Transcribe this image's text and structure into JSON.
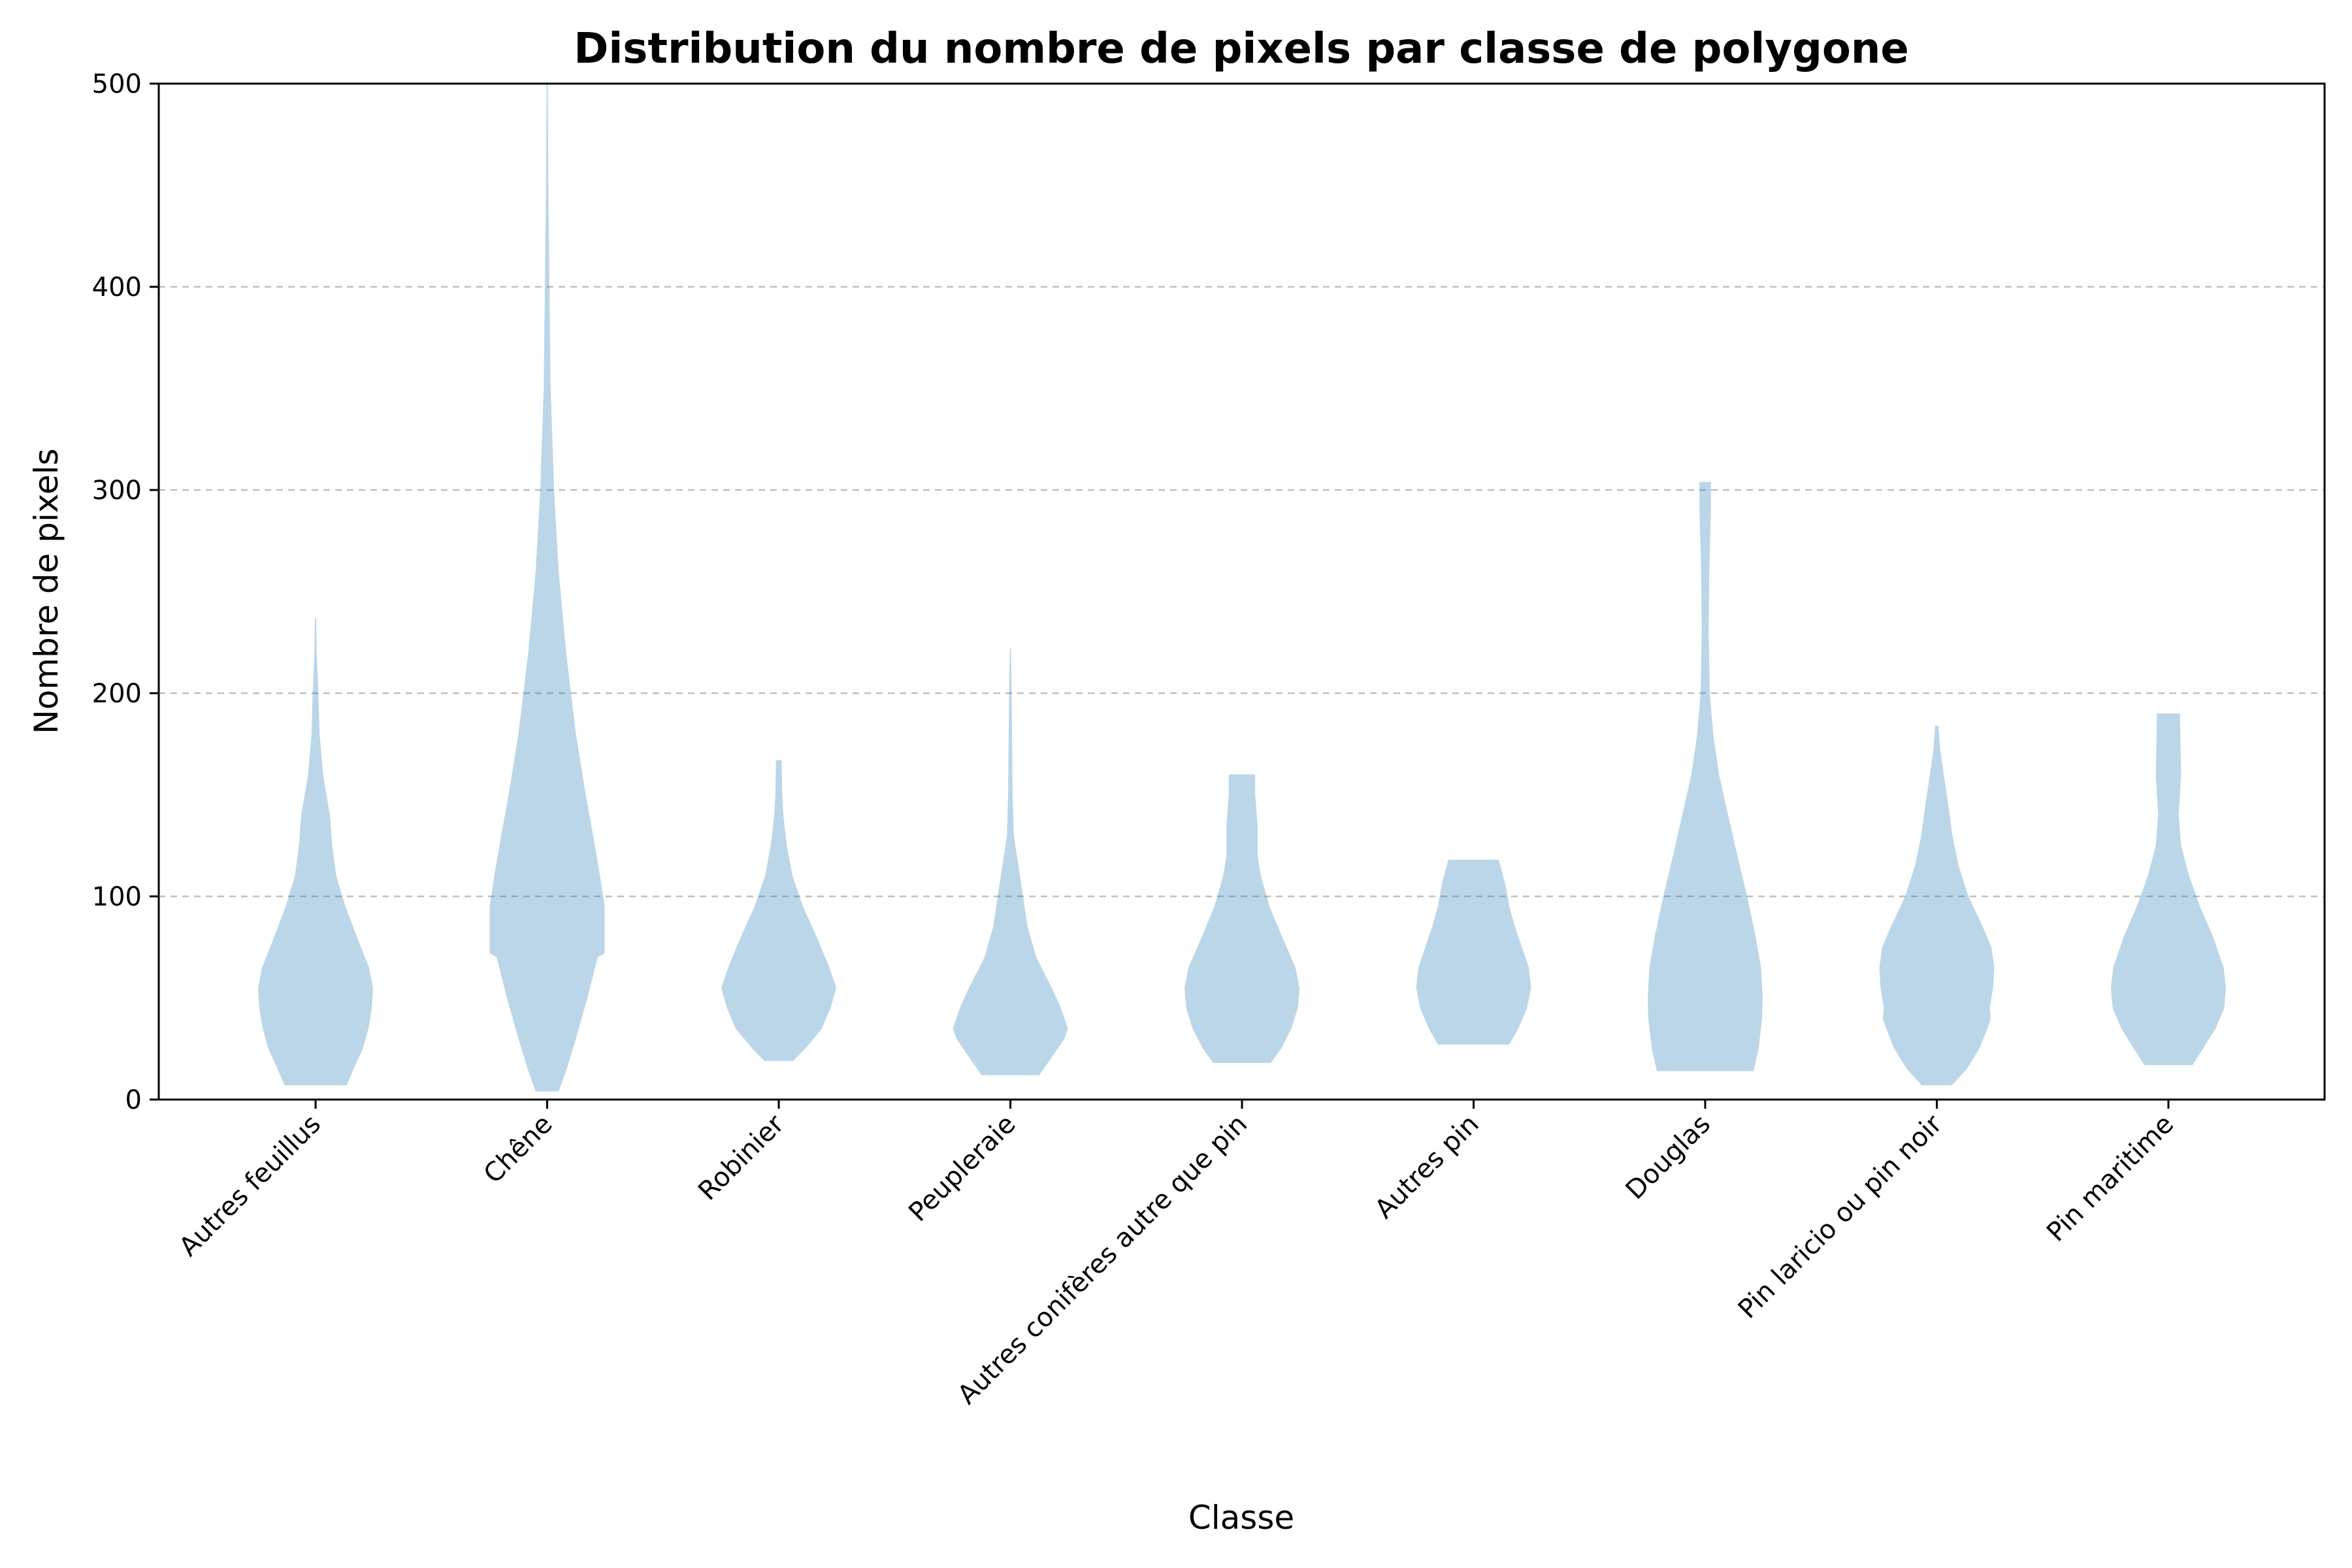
{
  "chart_data": {
    "type": "violin",
    "title": "Distribution du nombre de pixels par classe de polygone",
    "xlabel": "Classe",
    "ylabel": "Nombre de pixels",
    "ylim": [
      0,
      500
    ],
    "yticks": [
      0,
      100,
      200,
      300,
      400,
      500
    ],
    "grid": "y",
    "color": "#1f77b4",
    "categories": [
      "Autres feuillus",
      "Chêne",
      "Robinier",
      "Peupleraie",
      "Autres conifères autre que pin",
      "Autres pin",
      "Douglas",
      "Pin laricio ou pin noir",
      "Pin maritime"
    ],
    "distributions": [
      {
        "name": "Autres feuillus",
        "min": 7,
        "max": 237,
        "profile": [
          [
            7,
            0.54
          ],
          [
            15,
            0.66
          ],
          [
            25,
            0.82
          ],
          [
            35,
            0.92
          ],
          [
            45,
            0.98
          ],
          [
            55,
            1.0
          ],
          [
            65,
            0.93
          ],
          [
            80,
            0.72
          ],
          [
            95,
            0.52
          ],
          [
            110,
            0.36
          ],
          [
            125,
            0.29
          ],
          [
            140,
            0.25
          ],
          [
            160,
            0.13
          ],
          [
            180,
            0.07
          ],
          [
            200,
            0.05
          ],
          [
            220,
            0.02
          ],
          [
            237,
            0.01
          ]
        ]
      },
      {
        "name": "Chêne",
        "min": 4,
        "max": 500,
        "profile": [
          [
            4,
            0.2
          ],
          [
            15,
            0.34
          ],
          [
            30,
            0.5
          ],
          [
            50,
            0.7
          ],
          [
            70,
            0.88
          ],
          [
            72,
            1.0
          ],
          [
            95,
            1.0
          ],
          [
            110,
            0.92
          ],
          [
            130,
            0.8
          ],
          [
            150,
            0.67
          ],
          [
            180,
            0.5
          ],
          [
            220,
            0.33
          ],
          [
            260,
            0.2
          ],
          [
            300,
            0.12
          ],
          [
            350,
            0.06
          ],
          [
            400,
            0.04
          ],
          [
            450,
            0.02
          ],
          [
            500,
            0.01
          ]
        ]
      },
      {
        "name": "Robinier",
        "min": 19,
        "max": 167,
        "profile": [
          [
            19,
            0.25
          ],
          [
            25,
            0.46
          ],
          [
            35,
            0.75
          ],
          [
            45,
            0.9
          ],
          [
            55,
            1.0
          ],
          [
            65,
            0.88
          ],
          [
            80,
            0.66
          ],
          [
            95,
            0.42
          ],
          [
            110,
            0.24
          ],
          [
            125,
            0.14
          ],
          [
            140,
            0.08
          ],
          [
            150,
            0.06
          ],
          [
            167,
            0.05
          ]
        ]
      },
      {
        "name": "Peupleraie",
        "min": 12,
        "max": 222,
        "profile": [
          [
            12,
            0.5
          ],
          [
            20,
            0.7
          ],
          [
            30,
            0.94
          ],
          [
            35,
            1.0
          ],
          [
            45,
            0.88
          ],
          [
            55,
            0.72
          ],
          [
            70,
            0.45
          ],
          [
            85,
            0.3
          ],
          [
            100,
            0.22
          ],
          [
            115,
            0.14
          ],
          [
            130,
            0.06
          ],
          [
            150,
            0.04
          ],
          [
            180,
            0.03
          ],
          [
            200,
            0.02
          ],
          [
            222,
            0.01
          ]
        ]
      },
      {
        "name": "Autres conifères autre que pin",
        "min": 18,
        "max": 160,
        "profile": [
          [
            18,
            0.5
          ],
          [
            25,
            0.68
          ],
          [
            35,
            0.86
          ],
          [
            45,
            0.97
          ],
          [
            55,
            1.0
          ],
          [
            65,
            0.93
          ],
          [
            80,
            0.7
          ],
          [
            95,
            0.48
          ],
          [
            110,
            0.33
          ],
          [
            120,
            0.27
          ],
          [
            135,
            0.27
          ],
          [
            150,
            0.23
          ],
          [
            160,
            0.23
          ]
        ]
      },
      {
        "name": "Autres pin",
        "min": 27,
        "max": 118,
        "profile": [
          [
            27,
            0.62
          ],
          [
            35,
            0.78
          ],
          [
            45,
            0.93
          ],
          [
            55,
            1.0
          ],
          [
            65,
            0.96
          ],
          [
            75,
            0.84
          ],
          [
            85,
            0.72
          ],
          [
            95,
            0.62
          ],
          [
            105,
            0.56
          ],
          [
            118,
            0.44
          ]
        ]
      },
      {
        "name": "Douglas",
        "min": 14,
        "max": 304,
        "profile": [
          [
            14,
            0.84
          ],
          [
            25,
            0.93
          ],
          [
            40,
            0.99
          ],
          [
            50,
            1.0
          ],
          [
            65,
            0.97
          ],
          [
            80,
            0.88
          ],
          [
            100,
            0.73
          ],
          [
            120,
            0.56
          ],
          [
            140,
            0.4
          ],
          [
            160,
            0.24
          ],
          [
            180,
            0.14
          ],
          [
            200,
            0.08
          ],
          [
            230,
            0.06
          ],
          [
            260,
            0.07
          ],
          [
            290,
            0.1
          ],
          [
            304,
            0.1
          ]
        ]
      },
      {
        "name": "Pin laricio ou pin noir",
        "min": 7,
        "max": 184,
        "profile": [
          [
            7,
            0.26
          ],
          [
            15,
            0.52
          ],
          [
            25,
            0.74
          ],
          [
            35,
            0.88
          ],
          [
            40,
            0.94
          ],
          [
            45,
            0.92
          ],
          [
            55,
            0.98
          ],
          [
            65,
            1.0
          ],
          [
            75,
            0.95
          ],
          [
            85,
            0.8
          ],
          [
            100,
            0.55
          ],
          [
            115,
            0.38
          ],
          [
            130,
            0.27
          ],
          [
            145,
            0.2
          ],
          [
            160,
            0.12
          ],
          [
            172,
            0.06
          ],
          [
            184,
            0.03
          ]
        ]
      },
      {
        "name": "Pin maritime",
        "min": 17,
        "max": 190,
        "profile": [
          [
            17,
            0.42
          ],
          [
            25,
            0.6
          ],
          [
            35,
            0.82
          ],
          [
            45,
            0.97
          ],
          [
            55,
            1.0
          ],
          [
            65,
            0.96
          ],
          [
            80,
            0.78
          ],
          [
            95,
            0.55
          ],
          [
            110,
            0.36
          ],
          [
            125,
            0.22
          ],
          [
            140,
            0.18
          ],
          [
            160,
            0.22
          ],
          [
            175,
            0.21
          ],
          [
            190,
            0.2
          ]
        ]
      }
    ]
  }
}
